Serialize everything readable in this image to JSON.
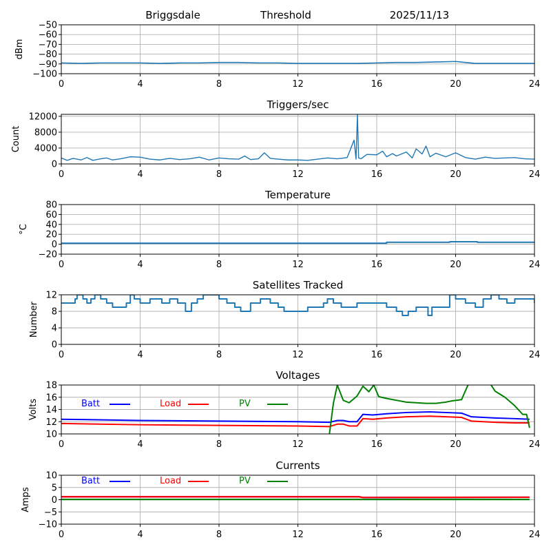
{
  "header": {
    "site": "Briggsdale",
    "mode": "Threshold",
    "date": "2025/11/13"
  },
  "colors": {
    "series_default": "#1f77b4",
    "batt": "#0000ff",
    "load": "#ff0000",
    "pv": "#008000",
    "grid": "#b0b0b0"
  },
  "chart_data": [
    {
      "id": "signal",
      "type": "line",
      "title": "",
      "xlabel": "",
      "ylabel": "dBm",
      "xlim": [
        0,
        24
      ],
      "ylim": [
        -100,
        -50
      ],
      "xticks": [
        0,
        4,
        8,
        12,
        16,
        20,
        24
      ],
      "yticks": [
        -100,
        -90,
        -80,
        -70,
        -60,
        -50
      ],
      "ytick_labels": [
        "−100",
        "−90",
        "−80",
        "−70",
        "−60",
        "−50"
      ],
      "grid": true,
      "series": [
        {
          "name": "dBm",
          "color": "#1f77b4",
          "x": [
            0,
            1,
            2,
            3,
            4,
            5,
            6,
            7,
            8,
            9,
            10,
            11,
            12,
            13,
            14,
            15,
            16,
            17,
            18,
            19,
            20,
            20.5,
            21,
            22,
            23,
            24
          ],
          "y": [
            -89,
            -89.5,
            -89,
            -89,
            -89,
            -89.5,
            -89,
            -89,
            -88.5,
            -88.5,
            -89,
            -89,
            -89.5,
            -89.5,
            -89.5,
            -89.5,
            -89,
            -88.5,
            -88.5,
            -88,
            -87.5,
            -88.5,
            -89.5,
            -89.5,
            -89.5,
            -89.5
          ]
        }
      ]
    },
    {
      "id": "triggers",
      "type": "line",
      "title": "Triggers/sec",
      "xlabel": "",
      "ylabel": "Count",
      "xlim": [
        0,
        24
      ],
      "ylim": [
        0,
        12500
      ],
      "xticks": [
        0,
        4,
        8,
        12,
        16,
        20,
        24
      ],
      "yticks": [
        0,
        4000,
        8000,
        12000
      ],
      "ytick_labels": [
        "0",
        "4000",
        "8000",
        "12000"
      ],
      "grid": true,
      "series": [
        {
          "name": "Count",
          "color": "#1f77b4",
          "x": [
            0,
            0.3,
            0.6,
            1,
            1.3,
            1.6,
            2,
            2.3,
            2.6,
            3,
            3.5,
            4,
            4.5,
            5,
            5.5,
            6,
            6.5,
            7,
            7.5,
            8,
            8.5,
            9,
            9.3,
            9.6,
            10,
            10.3,
            10.6,
            11,
            11.5,
            12,
            12.5,
            13,
            13.5,
            14,
            14.5,
            14.85,
            14.95,
            15.02,
            15.08,
            15.2,
            15.5,
            16,
            16.3,
            16.5,
            16.8,
            17,
            17.5,
            17.8,
            18,
            18.3,
            18.5,
            18.7,
            19,
            19.5,
            20,
            20.5,
            21,
            21.5,
            22,
            22.5,
            23,
            23.5,
            24
          ],
          "y": [
            1500,
            900,
            1400,
            1000,
            1600,
            900,
            1300,
            1500,
            1000,
            1300,
            1800,
            1700,
            1200,
            1000,
            1400,
            1100,
            1300,
            1700,
            1000,
            1500,
            1300,
            1200,
            2000,
            1100,
            1300,
            2800,
            1400,
            1200,
            1000,
            1000,
            900,
            1200,
            1500,
            1300,
            1600,
            6000,
            1200,
            12500,
            1500,
            1300,
            2400,
            2300,
            3200,
            1800,
            2600,
            2000,
            3000,
            1500,
            3800,
            2500,
            4500,
            1800,
            2700,
            1800,
            2800,
            1600,
            1200,
            1700,
            1400,
            1500,
            1600,
            1300,
            1200
          ]
        }
      ]
    },
    {
      "id": "temperature",
      "type": "line",
      "title": "Temperature",
      "xlabel": "",
      "ylabel": "°C",
      "xlim": [
        0,
        24
      ],
      "ylim": [
        -20,
        80
      ],
      "xticks": [
        0,
        4,
        8,
        12,
        16,
        20,
        24
      ],
      "yticks": [
        -20,
        0,
        20,
        40,
        60,
        80
      ],
      "ytick_labels": [
        "−20",
        "0",
        "20",
        "40",
        "60",
        "80"
      ],
      "grid": true,
      "series": [
        {
          "name": "Temperature",
          "color": "#1f77b4",
          "x": [
            0,
            16.5,
            16.5,
            19.7,
            19.7,
            21.1,
            21.1,
            24
          ],
          "y": [
            2,
            2,
            4,
            4,
            5,
            5,
            4,
            4
          ]
        }
      ]
    },
    {
      "id": "satellites",
      "type": "line",
      "title": "Satellites Tracked",
      "xlabel": "",
      "ylabel": "Number",
      "xlim": [
        0,
        24
      ],
      "ylim": [
        0,
        12
      ],
      "xticks": [
        0,
        4,
        8,
        12,
        16,
        20,
        24
      ],
      "yticks": [
        0,
        4,
        8,
        12
      ],
      "ytick_labels": [
        "0",
        "4",
        "8",
        "12"
      ],
      "grid": true,
      "series": [
        {
          "name": "Satellites",
          "color": "#1f77b4",
          "x": [
            0,
            0.7,
            0.8,
            1.1,
            1.3,
            1.5,
            1.7,
            2.0,
            2.3,
            2.6,
            3.3,
            3.5,
            3.7,
            4.0,
            4.5,
            5.1,
            5.5,
            5.9,
            6.3,
            6.6,
            6.9,
            7.2,
            7.5,
            8.0,
            8.4,
            8.8,
            9.1,
            9.6,
            10.1,
            10.6,
            11.0,
            11.3,
            12.0,
            12.5,
            13.3,
            13.5,
            13.8,
            14.2,
            14.7,
            15.0,
            15.5,
            16.0,
            16.5,
            17.0,
            17.3,
            17.6,
            18.0,
            18.6,
            18.8,
            19.6,
            19.7,
            20.0,
            20.5,
            21.0,
            21.4,
            21.8,
            22.2,
            22.6,
            23.0,
            24.0
          ],
          "y": [
            10,
            11,
            12,
            11,
            10,
            11,
            12,
            11,
            10,
            9,
            10,
            12,
            11,
            10,
            11,
            10,
            11,
            10,
            8,
            10,
            11,
            12,
            12,
            11,
            10,
            9,
            8,
            10,
            11,
            10,
            9,
            8,
            8,
            9,
            10,
            11,
            10,
            9,
            9,
            10,
            10,
            10,
            9,
            8,
            7,
            8,
            9,
            7,
            9,
            9,
            12,
            11,
            10,
            9,
            11,
            12,
            11,
            10,
            11,
            10
          ]
        }
      ]
    },
    {
      "id": "voltages",
      "type": "line",
      "title": "Voltages",
      "xlabel": "",
      "ylabel": "Volts",
      "xlim": [
        0,
        24
      ],
      "ylim": [
        10,
        18
      ],
      "xticks": [
        0,
        4,
        8,
        12,
        16,
        20,
        24
      ],
      "yticks": [
        10,
        12,
        14,
        16,
        18
      ],
      "ytick_labels": [
        "10",
        "12",
        "14",
        "16",
        "18"
      ],
      "grid": true,
      "legend": {
        "placement": "top-left",
        "entries": [
          "Batt",
          "Load",
          "PV"
        ]
      },
      "series": [
        {
          "name": "Batt",
          "color": "#0000ff",
          "x": [
            0,
            4,
            8,
            12,
            13.6,
            14.0,
            14.3,
            14.6,
            15.0,
            15.3,
            15.8,
            16.5,
            17.5,
            18.7,
            19.5,
            20.3,
            20.8,
            22,
            23,
            23.75
          ],
          "y": [
            12.4,
            12.2,
            12.1,
            12.0,
            11.9,
            12.2,
            12.2,
            12.0,
            12.0,
            13.2,
            13.1,
            13.3,
            13.5,
            13.6,
            13.5,
            13.4,
            12.8,
            12.6,
            12.5,
            12.4
          ]
        },
        {
          "name": "Load",
          "color": "#ff0000",
          "x": [
            0,
            4,
            8,
            12,
            13.6,
            14.0,
            14.3,
            14.6,
            15.0,
            15.3,
            15.8,
            16.5,
            17.5,
            18.7,
            19.5,
            20.3,
            20.8,
            22,
            23,
            23.75
          ],
          "y": [
            11.7,
            11.5,
            11.4,
            11.3,
            11.2,
            11.6,
            11.6,
            11.3,
            11.3,
            12.5,
            12.4,
            12.6,
            12.8,
            12.9,
            12.8,
            12.7,
            12.1,
            11.9,
            11.8,
            11.8
          ]
        },
        {
          "name": "PV",
          "color": "#008000",
          "x": [
            13.6,
            13.8,
            14.0,
            14.3,
            14.6,
            15.0,
            15.3,
            15.6,
            15.85,
            16.1,
            16.5,
            17.0,
            17.5,
            18.5,
            19.0,
            19.5,
            19.8,
            20.3,
            20.6,
            20.9,
            21.5,
            22.0,
            22.5,
            23.0,
            23.4,
            23.6,
            23.75
          ],
          "y": [
            10.0,
            15.0,
            18.0,
            15.5,
            15.1,
            16.2,
            17.8,
            16.9,
            18.0,
            16.1,
            15.8,
            15.5,
            15.2,
            15.0,
            15.0,
            15.2,
            15.4,
            15.6,
            17.8,
            19.5,
            19.5,
            17.0,
            16.0,
            14.6,
            13.2,
            13.2,
            11.0
          ]
        }
      ]
    },
    {
      "id": "currents",
      "type": "line",
      "title": "Currents",
      "xlabel": "",
      "ylabel": "Amps",
      "xlim": [
        0,
        24
      ],
      "ylim": [
        -10,
        10
      ],
      "xticks": [
        0,
        4,
        8,
        12,
        16,
        20,
        24
      ],
      "yticks": [
        -10,
        -5,
        0,
        5,
        10
      ],
      "ytick_labels": [
        "−10",
        "−5",
        "0",
        "5",
        "10"
      ],
      "grid": true,
      "legend": {
        "placement": "top-left",
        "entries": [
          "Batt",
          "Load",
          "PV"
        ]
      },
      "series": [
        {
          "name": "Batt",
          "color": "#0000ff",
          "x": [
            0,
            15.1,
            15.3,
            23.75
          ],
          "y": [
            1.2,
            1.2,
            0.9,
            1.0
          ]
        },
        {
          "name": "Load",
          "color": "#ff0000",
          "x": [
            0,
            15.1,
            15.3,
            23.75
          ],
          "y": [
            1.2,
            1.2,
            0.9,
            1.0
          ]
        },
        {
          "name": "PV",
          "color": "#008000",
          "x": [
            0,
            23.75
          ],
          "y": [
            0.1,
            0.1
          ]
        }
      ]
    }
  ]
}
